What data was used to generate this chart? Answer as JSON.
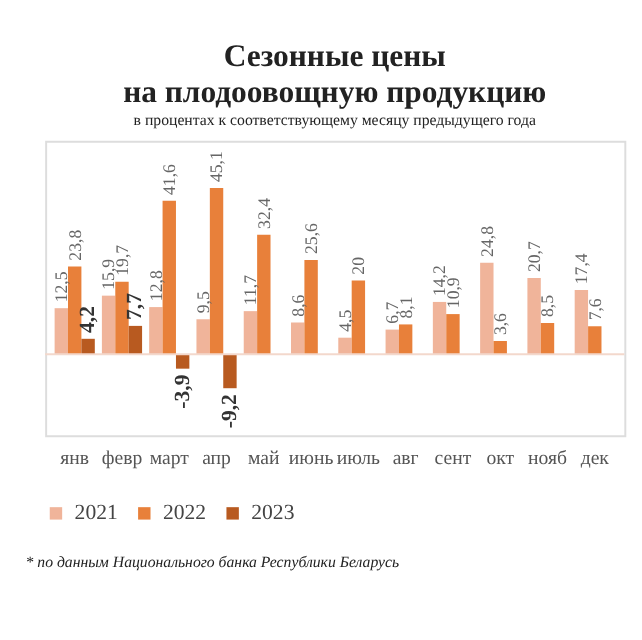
{
  "chart_data": {
    "type": "bar",
    "title": [
      "Сезонные цены",
      "на плодоовощную продукцию"
    ],
    "subtitle": "в процентах к соответствующему месяцу предыдущего года",
    "categories": [
      "янв",
      "февр",
      "март",
      "апр",
      "май",
      "июнь",
      "июль",
      "авг",
      "сент",
      "окт",
      "нояб",
      "дек"
    ],
    "series": [
      {
        "name": "2021",
        "color": "#f0b49a",
        "values": [
          12.5,
          15.9,
          12.8,
          9.5,
          11.7,
          8.6,
          4.5,
          6.7,
          14.2,
          24.8,
          20.7,
          17.4
        ],
        "value_labels": [
          "12,5",
          "15,9",
          "12,8",
          "9,5",
          "11,7",
          "8,6",
          "4,5",
          "6,7",
          "14,2",
          "24,8",
          "20,7",
          "17,4"
        ]
      },
      {
        "name": "2022",
        "color": "#e8803a",
        "values": [
          23.8,
          19.7,
          41.6,
          45.1,
          32.4,
          25.6,
          20,
          8.1,
          10.9,
          3.6,
          8.5,
          7.6
        ],
        "value_labels": [
          "23,8",
          "19,7",
          "41,6",
          "45,1",
          "32,4",
          "25,6",
          "20",
          "8,1",
          "10,9",
          "3,6",
          "8,5",
          "7,6"
        ]
      },
      {
        "name": "2023",
        "color": "#b85a20",
        "values": [
          4.2,
          7.7,
          -3.9,
          -9.2,
          null,
          null,
          null,
          null,
          null,
          null,
          null,
          null
        ],
        "value_labels": [
          "4,2",
          "7,7",
          "-3,9",
          "-9,2",
          null,
          null,
          null,
          null,
          null,
          null,
          null,
          null
        ]
      }
    ],
    "legend": "bottom",
    "annotations": [
      "* по данным Национального банка Республики Беларусь"
    ]
  }
}
